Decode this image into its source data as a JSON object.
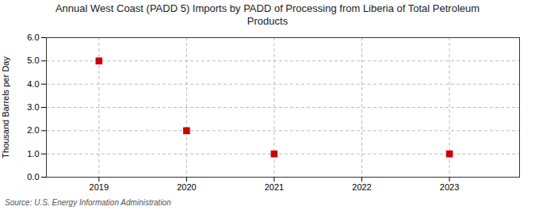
{
  "chart_data": {
    "type": "scatter",
    "title": "Annual West Coast (PADD 5) Imports by PADD of Processing from Liberia of Total Petroleum\nProducts",
    "ylabel": "Thousand Barrels per Day",
    "annotations": [
      "Source: U.S. Energy Information Administration"
    ],
    "x": [
      2019,
      2020,
      2021,
      2023
    ],
    "values": [
      5.0,
      2.0,
      1.0,
      1.0
    ],
    "color": "#cc0000",
    "marker": "square",
    "xlim": [
      2018.4,
      2023.8
    ],
    "xticks": [
      2019,
      2020,
      2021,
      2022,
      2023
    ],
    "ylim": [
      0.0,
      6.0
    ],
    "yticks": [
      {
        "value": 0,
        "label": "0.0"
      },
      {
        "value": 1,
        "label": "1.0"
      },
      {
        "value": 2,
        "label": "2.0"
      },
      {
        "value": 3,
        "label": "3.0"
      },
      {
        "value": 4,
        "label": "4.0"
      },
      {
        "value": 5,
        "label": "5.0"
      },
      {
        "value": 6,
        "label": "6.0"
      }
    ],
    "grid": true
  }
}
